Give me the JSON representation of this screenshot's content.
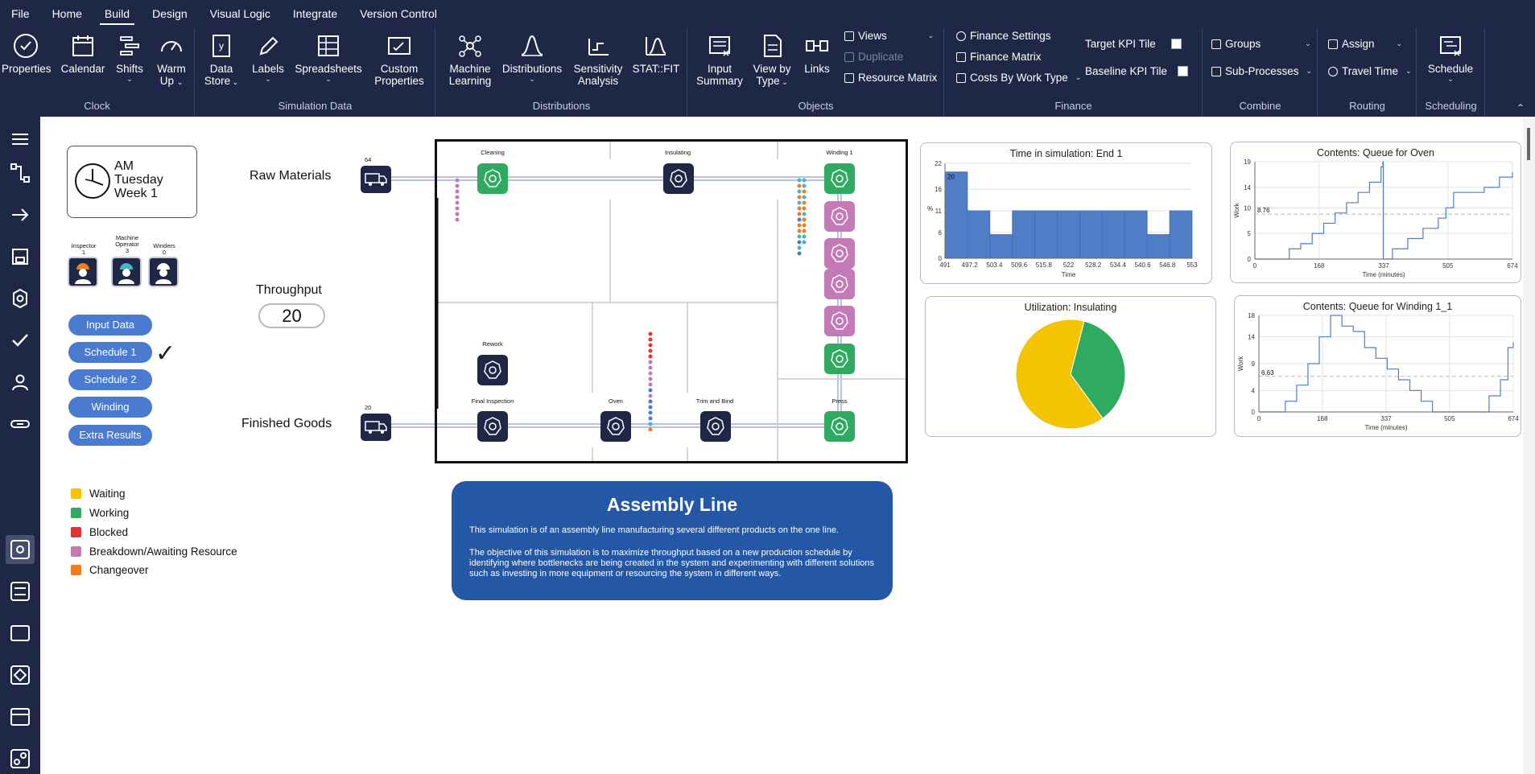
{
  "menu": [
    "File",
    "Home",
    "Build",
    "Design",
    "Visual Logic",
    "Integrate",
    "Version Control"
  ],
  "active_menu": "Build",
  "ribbon": {
    "clock": {
      "label": "Clock",
      "properties": "Properties",
      "calendar": "Calendar",
      "shifts": "Shifts",
      "warm_up_1": "Warm",
      "warm_up_2": "Up"
    },
    "simdata": {
      "label": "Simulation Data",
      "data_store_1": "Data",
      "data_store_2": "Store",
      "labels": "Labels",
      "spreadsheets": "Spreadsheets",
      "custom_1": "Custom",
      "custom_2": "Properties"
    },
    "distributions": {
      "label": "Distributions",
      "ml_1": "Machine",
      "ml_2": "Learning",
      "distributions": "Distributions",
      "sens_1": "Sensitivity",
      "sens_2": "Analysis",
      "statfit": "STAT::FIT"
    },
    "objects": {
      "label": "Objects",
      "input_1": "Input",
      "input_2": "Summary",
      "view_1": "View by",
      "view_2": "Type",
      "links": "Links",
      "views": "Views",
      "duplicate": "Duplicate",
      "resource_matrix": "Resource Matrix"
    },
    "finance": {
      "label": "Finance",
      "finance_settings": "Finance Settings",
      "finance_matrix": "Finance Matrix",
      "costs_by_work_type": "Costs By Work Type",
      "target_kpi": "Target KPI Tile",
      "baseline_kpi": "Baseline KPI Tile"
    },
    "combine": {
      "label": "Combine",
      "groups": "Groups",
      "sub_processes": "Sub-Processes"
    },
    "routing": {
      "label": "Routing",
      "assign": "Assign",
      "travel_time": "Travel Time"
    },
    "scheduling": {
      "label": "Scheduling",
      "schedule": "Schedule"
    }
  },
  "clock": {
    "line1": "AM",
    "line2": "Tuesday",
    "line3": "Week 1"
  },
  "resources": [
    {
      "name": "Inspector",
      "count": "1"
    },
    {
      "name": "Machine Operator",
      "count": "3"
    },
    {
      "name": "Winders",
      "count": "0"
    }
  ],
  "buttons": [
    "Input Data",
    "Schedule 1",
    "Schedule 2",
    "Winding",
    "Extra Results"
  ],
  "checkmark": "✓",
  "legend": [
    {
      "label": "Waiting",
      "color": "#f5c400"
    },
    {
      "label": "Working",
      "color": "#2eaa61"
    },
    {
      "label": "Blocked",
      "color": "#e03333"
    },
    {
      "label": "Breakdown/Awaiting Resource",
      "color": "#c47ab6"
    },
    {
      "label": "Changeover",
      "color": "#ef7d22"
    }
  ],
  "labels": {
    "raw_materials": "Raw Materials",
    "finished_goods": "Finished Goods",
    "throughput": "Throughput",
    "throughput_value": "20"
  },
  "flow": {
    "raw_count": "64",
    "finished_count": "20",
    "nodes": {
      "cleaning": "Cleaning",
      "insulating": "Insulating",
      "winding": "Winding 1",
      "rework": "Rework",
      "final_inspection": "Final Inspection",
      "oven": "Oven",
      "trim": "Trim and Bind",
      "press": "Press"
    }
  },
  "info": {
    "title": "Assembly Line",
    "p1": "This simulation is of an assembly line manufacturing several different products on the one line.",
    "p2": "The objective of this simulation is to maximize throughput based on a new production schedule by identifying where bottlenecks are being created in the system and experimenting with different solutions such as investing in more equipment or resourcing the system in different ways."
  },
  "colors": {
    "navy": "#1f2747",
    "blue_button": "#4a7bd0",
    "card": "#2457a6",
    "bar": "#4f7ec7",
    "waiting": "#f5c400",
    "working": "#2eaa61"
  },
  "chart_data": [
    {
      "type": "bar",
      "title": "Time in simulation: End 1",
      "xlabel": "Time",
      "ylabel": "%",
      "categories": [
        "491",
        "497.2",
        "503.4",
        "509.6",
        "515.8",
        "522",
        "528.2",
        "534.4",
        "540.6",
        "546.8",
        "553"
      ],
      "values": [
        20,
        11,
        5.5,
        11,
        11,
        11,
        11,
        11,
        11,
        5.5,
        11
      ],
      "data_label": "20",
      "yticks": [
        "0",
        "6",
        "11",
        "16",
        "22"
      ],
      "ylim": [
        0,
        22
      ]
    },
    {
      "type": "line",
      "title": "Contents: Queue for Oven",
      "xlabel": "Time (minutes)",
      "ylabel": "Work",
      "xticks": [
        "0",
        "168",
        "337",
        "505",
        "674"
      ],
      "yticks": [
        "0",
        "5",
        "10",
        "14",
        "19"
      ],
      "mean_label": "8.76",
      "xlim": [
        0,
        674
      ],
      "ylim": [
        0,
        19
      ],
      "mean": 8.76,
      "series": [
        {
          "x": [
            0,
            60,
            90,
            120,
            150,
            180,
            210,
            240,
            270,
            300,
            330,
            335,
            336,
            360,
            400,
            440,
            480,
            500,
            520,
            560,
            600,
            640,
            674
          ],
          "y": [
            0,
            0,
            2,
            3,
            5,
            7,
            9,
            11,
            13,
            15,
            18,
            19,
            0,
            2,
            4,
            6,
            8,
            10,
            13,
            13,
            14,
            16,
            17
          ]
        }
      ]
    },
    {
      "type": "pie",
      "title": "Utilization: Insulating",
      "slices": [
        {
          "label": "Working",
          "value": 36
        },
        {
          "label": "Waiting",
          "value": 64
        }
      ]
    },
    {
      "type": "line",
      "title": "Contents: Queue for Winding 1_1",
      "xlabel": "Time (minutes)",
      "ylabel": "Work",
      "xticks": [
        "0",
        "168",
        "337",
        "505",
        "674"
      ],
      "yticks": [
        "0",
        "4",
        "9",
        "14",
        "18"
      ],
      "mean_label": "6.63",
      "xlim": [
        0,
        674
      ],
      "ylim": [
        0,
        18
      ],
      "mean": 6.63,
      "series": [
        {
          "x": [
            0,
            40,
            70,
            100,
            130,
            160,
            190,
            220,
            250,
            280,
            310,
            340,
            370,
            400,
            430,
            460,
            490,
            520,
            550,
            580,
            610,
            640,
            660,
            674
          ],
          "y": [
            0,
            0,
            2,
            5,
            9,
            14,
            18,
            16,
            15,
            12,
            10,
            8,
            6,
            4,
            2,
            0,
            0,
            0,
            0,
            0,
            3,
            6,
            12,
            13
          ]
        }
      ]
    }
  ]
}
